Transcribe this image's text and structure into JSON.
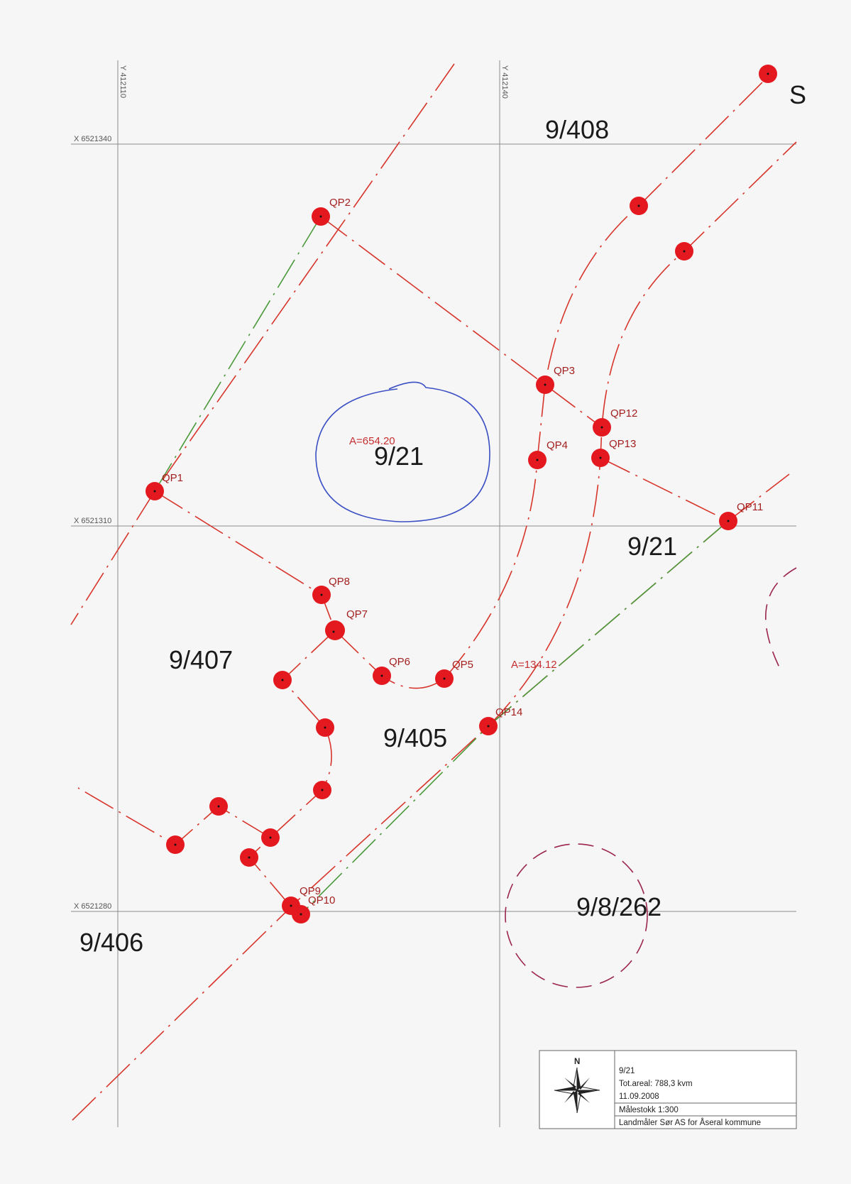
{
  "grid": {
    "y_labels": [
      "Y 412110",
      "Y 412140"
    ],
    "x_labels": [
      "X 6521340",
      "X 6521310",
      "X 6521280"
    ]
  },
  "parcels": [
    {
      "id": "p-9-408",
      "label": "9/408"
    },
    {
      "id": "p-9-21-top",
      "label": "9/21"
    },
    {
      "id": "p-9-21-right",
      "label": "9/21"
    },
    {
      "id": "p-9-407",
      "label": "9/407"
    },
    {
      "id": "p-9-405",
      "label": "9/405"
    },
    {
      "id": "p-9-406",
      "label": "9/406"
    },
    {
      "id": "p-9-8-262",
      "label": "9/8/262"
    },
    {
      "id": "p-edge",
      "label": "S"
    }
  ],
  "areas": [
    {
      "id": "area-1",
      "label": "A=654.20"
    },
    {
      "id": "area-2",
      "label": "A=134.12"
    }
  ],
  "points": [
    {
      "label": "QP1"
    },
    {
      "label": "QP2"
    },
    {
      "label": "QP3"
    },
    {
      "label": "QP4"
    },
    {
      "label": "QP5"
    },
    {
      "label": "QP6"
    },
    {
      "label": "QP7"
    },
    {
      "label": "QP8"
    },
    {
      "label": "QP9"
    },
    {
      "label": "QP10"
    },
    {
      "label": "QP11"
    },
    {
      "label": "QP12"
    },
    {
      "label": "QP13"
    },
    {
      "label": "QP14"
    }
  ],
  "legend": {
    "north": "N",
    "parcel": "9/21",
    "total_area": "Tot.areal: 788,3 kvm",
    "date": "11.09.2008",
    "scale": "Målestokk 1:300",
    "author": "Landmåler Sør AS for Åseral kommune"
  },
  "colors": {
    "boundary_red": "#d7352b",
    "boundary_green": "#4a9a3b",
    "boundary_maroon": "#9b2550",
    "marker_red": "#e3191f",
    "annotation_blue": "#3b4fc4"
  }
}
